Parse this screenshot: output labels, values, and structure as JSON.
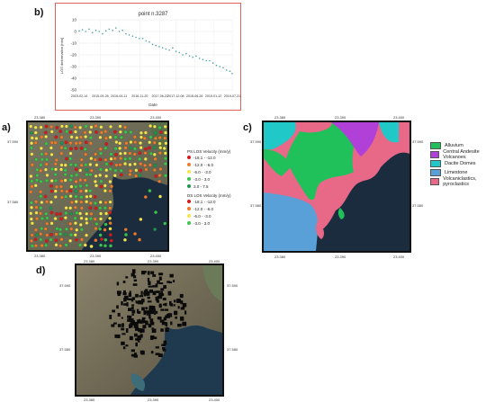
{
  "panels": {
    "b": "b)",
    "a": "a)",
    "c": "c)",
    "d": "d)"
  },
  "map_ticks": {
    "lon": [
      "23.380",
      "23.390",
      "23.400"
    ],
    "lat": [
      "37.590",
      "37.580",
      "37.570"
    ]
  },
  "legend_ps": {
    "title": "PS LOS Velocity (mm/y)",
    "items": [
      {
        "label": "-18.1 - -12.0",
        "color": "#d7191c"
      },
      {
        "label": "-12.0 - -6.0",
        "color": "#f07c2a"
      },
      {
        "label": "-6.0 - -3.0",
        "color": "#f5e74b"
      },
      {
        "label": "-3.0 - 3.0",
        "color": "#38c74b"
      },
      {
        "label": "3.0 - 7.5",
        "color": "#1a9850"
      }
    ]
  },
  "legend_ds": {
    "title": "DS LOS Velocity (mm/y)",
    "items": [
      {
        "label": "-18.1 - -12.0",
        "color": "#d7191c"
      },
      {
        "label": "-12.0 - -6.0",
        "color": "#f07c2a"
      },
      {
        "label": "-6.0 - -3.0",
        "color": "#f5e74b"
      },
      {
        "label": "-3.0 - 3.0",
        "color": "#38c74b"
      }
    ]
  },
  "geology_legend": [
    {
      "label": "Alluvium",
      "color": "#20c05a"
    },
    {
      "label": "Central Andesite Volcanoes",
      "color": "#b040d8"
    },
    {
      "label": "Dacite Domes",
      "color": "#20c8c8"
    },
    {
      "label": "Limestone",
      "color": "#5aa0d8"
    },
    {
      "label": "Volcaniclastics, pyroclastics",
      "color": "#e86888"
    }
  ],
  "chart_data": {
    "type": "scatter",
    "title": "point n.3287",
    "xlabel": "Date",
    "ylabel": "LOS deformation [mm]",
    "ylim": [
      -50,
      10
    ],
    "yticks": [
      10,
      0,
      -10,
      -20,
      -30,
      -40,
      -50
    ],
    "xticks": [
      "2015-02-14",
      "2015-09-26",
      "2016-04-11",
      "2016-11-20",
      "2017-06-22",
      "2017-12-08",
      "2018-06-26",
      "2019-01-12",
      "2019-07-31"
    ],
    "grid": true,
    "points": [
      {
        "x": "2015-02-14",
        "y": 0.5
      },
      {
        "x": "2015-03-20",
        "y": 1.5
      },
      {
        "x": "2015-04-25",
        "y": 0
      },
      {
        "x": "2015-05-30",
        "y": 2
      },
      {
        "x": "2015-07-05",
        "y": -1
      },
      {
        "x": "2015-08-10",
        "y": 1
      },
      {
        "x": "2015-09-15",
        "y": 0
      },
      {
        "x": "2015-10-20",
        "y": -2
      },
      {
        "x": "2015-11-25",
        "y": 0.5
      },
      {
        "x": "2015-12-30",
        "y": 2
      },
      {
        "x": "2016-02-05",
        "y": 1
      },
      {
        "x": "2016-03-10",
        "y": 3
      },
      {
        "x": "2016-04-15",
        "y": 0
      },
      {
        "x": "2016-05-20",
        "y": 1
      },
      {
        "x": "2016-06-25",
        "y": -2
      },
      {
        "x": "2016-07-30",
        "y": -3
      },
      {
        "x": "2016-09-05",
        "y": -4
      },
      {
        "x": "2016-10-10",
        "y": -5
      },
      {
        "x": "2016-11-15",
        "y": -6
      },
      {
        "x": "2016-12-20",
        "y": -6
      },
      {
        "x": "2017-01-25",
        "y": -8
      },
      {
        "x": "2017-03-01",
        "y": -9
      },
      {
        "x": "2017-04-05",
        "y": -11
      },
      {
        "x": "2017-05-10",
        "y": -12
      },
      {
        "x": "2017-06-15",
        "y": -13
      },
      {
        "x": "2017-07-20",
        "y": -14
      },
      {
        "x": "2017-08-25",
        "y": -15
      },
      {
        "x": "2017-09-30",
        "y": -16
      },
      {
        "x": "2017-11-05",
        "y": -14
      },
      {
        "x": "2017-12-10",
        "y": -17
      },
      {
        "x": "2018-01-15",
        "y": -18
      },
      {
        "x": "2018-02-20",
        "y": -20
      },
      {
        "x": "2018-03-28",
        "y": -19
      },
      {
        "x": "2018-05-02",
        "y": -21
      },
      {
        "x": "2018-06-07",
        "y": -22
      },
      {
        "x": "2018-07-12",
        "y": -21
      },
      {
        "x": "2018-08-17",
        "y": -23
      },
      {
        "x": "2018-09-22",
        "y": -24
      },
      {
        "x": "2018-10-28",
        "y": -25
      },
      {
        "x": "2018-12-03",
        "y": -25
      },
      {
        "x": "2019-01-08",
        "y": -27
      },
      {
        "x": "2019-02-13",
        "y": -29
      },
      {
        "x": "2019-03-21",
        "y": -30
      },
      {
        "x": "2019-04-26",
        "y": -31
      },
      {
        "x": "2019-06-01",
        "y": -33
      },
      {
        "x": "2019-07-07",
        "y": -34
      },
      {
        "x": "2019-07-31",
        "y": -36
      }
    ]
  }
}
